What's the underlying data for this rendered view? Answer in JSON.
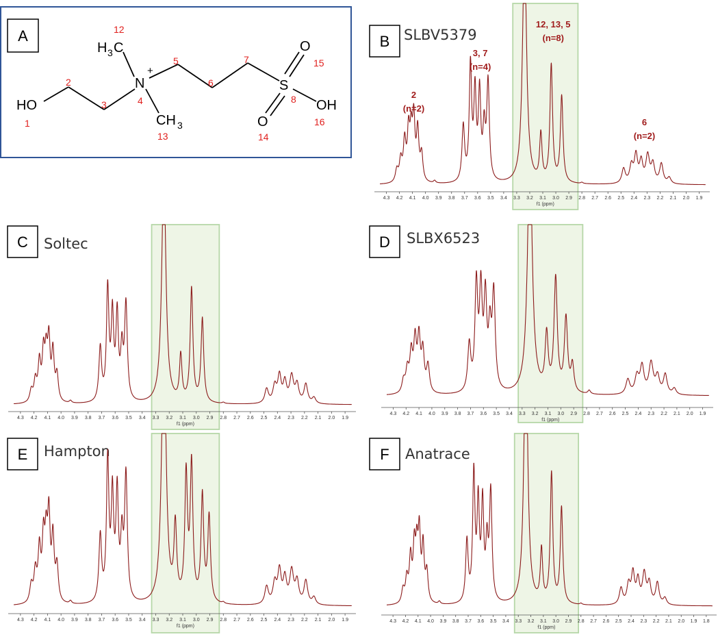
{
  "structure": {
    "label": "A",
    "atoms": {
      "ho": "HO",
      "n": "N",
      "plus": "+",
      "s": "S",
      "o_top": "O",
      "o_bottom": "O",
      "oh": "OH",
      "h3c_h": "H",
      "h3c_3": "3",
      "h3c_c": "C",
      "ch3_c": "CH",
      "ch3_3": "3"
    },
    "numbers": [
      "1",
      "2",
      "3",
      "4",
      "5",
      "6",
      "7",
      "8",
      "12",
      "13",
      "14",
      "15",
      "16"
    ],
    "colors": {
      "bond": "#000000",
      "numbers": "#e0201e",
      "frame": "#2f5597"
    }
  },
  "x_axis_label": "f1 (ppm)",
  "colors": {
    "spectrum": "#8b1a1a",
    "highlight_fill": "#eef5e6",
    "highlight_stroke": "#b6d7a8",
    "annotation": "#a01c1c"
  },
  "chart_data": [
    {
      "panel": "B",
      "title": "SLBV5379",
      "type": "line",
      "x_range": [
        4.35,
        1.85
      ],
      "ticks": [
        "4.3",
        "4.2",
        "4.1",
        "4.0",
        "3.9",
        "3.8",
        "3.7",
        "3.6",
        "3.5",
        "3.4",
        "3.3",
        "3.2",
        "3.1",
        "3.0",
        "2.9",
        "2.8",
        "2.7",
        "2.6",
        "2.5",
        "2.4",
        "2.3",
        "2.2",
        "2.1",
        "2.0",
        "1.9"
      ],
      "highlight_ppm": [
        3.33,
        2.83
      ],
      "annotations": [
        {
          "lines": [
            "2",
            "(n=2)"
          ],
          "ppm": 4.09
        },
        {
          "lines": [
            "3, 7",
            "(n=4)"
          ],
          "ppm": 3.58
        },
        {
          "lines": [
            "12, 13, 5",
            "(n=8)"
          ],
          "ppm": 3.02
        },
        {
          "lines": [
            "6",
            "(n=2)"
          ],
          "ppm": 2.32
        }
      ],
      "peaks": [
        [
          4.22,
          0.1,
          0.013
        ],
        [
          4.19,
          0.17,
          0.012
        ],
        [
          4.16,
          0.32,
          0.012
        ],
        [
          4.13,
          0.38,
          0.011
        ],
        [
          4.11,
          0.35,
          0.011
        ],
        [
          4.09,
          0.48,
          0.011
        ],
        [
          4.06,
          0.4,
          0.011
        ],
        [
          4.03,
          0.22,
          0.012
        ],
        [
          3.93,
          0.02,
          0.01
        ],
        [
          3.71,
          0.45,
          0.012
        ],
        [
          3.655,
          0.93,
          0.011
        ],
        [
          3.62,
          0.7,
          0.011
        ],
        [
          3.585,
          0.7,
          0.011
        ],
        [
          3.55,
          0.4,
          0.011
        ],
        [
          3.52,
          0.8,
          0.012
        ],
        [
          3.24,
          2.0,
          0.018
        ],
        [
          3.115,
          0.38,
          0.011
        ],
        [
          3.035,
          0.95,
          0.012
        ],
        [
          2.955,
          0.7,
          0.012
        ],
        [
          2.8,
          0.01,
          0.01
        ],
        [
          2.48,
          0.12,
          0.016
        ],
        [
          2.42,
          0.14,
          0.016
        ],
        [
          2.385,
          0.22,
          0.015
        ],
        [
          2.345,
          0.17,
          0.015
        ],
        [
          2.295,
          0.22,
          0.017
        ],
        [
          2.255,
          0.15,
          0.016
        ],
        [
          2.19,
          0.16,
          0.016
        ],
        [
          2.13,
          0.05,
          0.016
        ]
      ]
    },
    {
      "panel": "C",
      "title": "Soltec",
      "type": "line",
      "x_range": [
        4.35,
        1.85
      ],
      "ticks": [
        "4.3",
        "4.2",
        "4.1",
        "4.0",
        "3.9",
        "3.8",
        "3.7",
        "3.6",
        "3.5",
        "3.4",
        "3.3",
        "3.2",
        "3.1",
        "3.0",
        "2.9",
        "2.8",
        "2.7",
        "2.6",
        "2.5",
        "2.4",
        "2.3",
        "2.2",
        "2.1",
        "2.0",
        "1.9"
      ],
      "highlight_ppm": [
        3.33,
        2.83
      ],
      "annotations": [],
      "peaks": [
        [
          4.22,
          0.1,
          0.013
        ],
        [
          4.19,
          0.17,
          0.012
        ],
        [
          4.16,
          0.32,
          0.012
        ],
        [
          4.13,
          0.38,
          0.011
        ],
        [
          4.11,
          0.35,
          0.011
        ],
        [
          4.09,
          0.48,
          0.011
        ],
        [
          4.06,
          0.4,
          0.011
        ],
        [
          4.03,
          0.22,
          0.012
        ],
        [
          3.93,
          0.02,
          0.01
        ],
        [
          3.71,
          0.45,
          0.012
        ],
        [
          3.655,
          0.93,
          0.011
        ],
        [
          3.62,
          0.7,
          0.011
        ],
        [
          3.585,
          0.7,
          0.011
        ],
        [
          3.55,
          0.4,
          0.011
        ],
        [
          3.52,
          0.8,
          0.012
        ],
        [
          3.24,
          2.0,
          0.018
        ],
        [
          3.115,
          0.38,
          0.011
        ],
        [
          3.035,
          0.95,
          0.012
        ],
        [
          2.955,
          0.7,
          0.012
        ],
        [
          2.8,
          0.01,
          0.01
        ],
        [
          2.48,
          0.12,
          0.016
        ],
        [
          2.42,
          0.14,
          0.016
        ],
        [
          2.385,
          0.22,
          0.015
        ],
        [
          2.345,
          0.17,
          0.015
        ],
        [
          2.295,
          0.22,
          0.017
        ],
        [
          2.255,
          0.15,
          0.016
        ],
        [
          2.19,
          0.16,
          0.016
        ],
        [
          2.13,
          0.05,
          0.016
        ]
      ]
    },
    {
      "panel": "D",
      "title": "SLBX6523",
      "type": "line",
      "x_range": [
        4.35,
        1.85
      ],
      "ticks": [
        "4.3",
        "4.2",
        "4.1",
        "4.0",
        "3.9",
        "3.8",
        "3.7",
        "3.6",
        "3.5",
        "3.4",
        "3.3",
        "3.2",
        "3.1",
        "3.0",
        "2.9",
        "2.8",
        "2.7",
        "2.6",
        "2.5",
        "2.4",
        "2.3",
        "2.2",
        "2.1",
        "2.0",
        "1.9"
      ],
      "highlight_ppm": [
        3.33,
        2.83
      ],
      "annotations": [],
      "peaks": [
        [
          4.22,
          0.1,
          0.014
        ],
        [
          4.19,
          0.18,
          0.014
        ],
        [
          4.16,
          0.3,
          0.013
        ],
        [
          4.13,
          0.4,
          0.013
        ],
        [
          4.1,
          0.42,
          0.013
        ],
        [
          4.07,
          0.32,
          0.013
        ],
        [
          4.03,
          0.22,
          0.014
        ],
        [
          3.71,
          0.38,
          0.014
        ],
        [
          3.655,
          0.85,
          0.013
        ],
        [
          3.62,
          0.78,
          0.013
        ],
        [
          3.585,
          0.72,
          0.013
        ],
        [
          3.55,
          0.45,
          0.013
        ],
        [
          3.52,
          0.78,
          0.014
        ],
        [
          3.24,
          2.0,
          0.022
        ],
        [
          3.11,
          0.45,
          0.014
        ],
        [
          3.04,
          0.92,
          0.015
        ],
        [
          2.96,
          0.6,
          0.015
        ],
        [
          2.91,
          0.22,
          0.014
        ],
        [
          2.78,
          0.03,
          0.012
        ],
        [
          2.48,
          0.12,
          0.018
        ],
        [
          2.41,
          0.14,
          0.018
        ],
        [
          2.37,
          0.22,
          0.018
        ],
        [
          2.3,
          0.25,
          0.02
        ],
        [
          2.25,
          0.14,
          0.018
        ],
        [
          2.19,
          0.16,
          0.017
        ],
        [
          2.12,
          0.05,
          0.017
        ]
      ]
    },
    {
      "panel": "E",
      "title": "Hampton",
      "type": "line",
      "x_range": [
        4.35,
        1.85
      ],
      "ticks": [
        "4.3",
        "4.2",
        "4.1",
        "4.0",
        "3.9",
        "3.8",
        "3.7",
        "3.6",
        "3.5",
        "3.4",
        "3.3",
        "3.2",
        "3.1",
        "3.0",
        "2.9",
        "2.8",
        "2.7",
        "2.6",
        "2.5",
        "2.4",
        "2.3",
        "2.2",
        "2.1",
        "2.0",
        "1.9"
      ],
      "highlight_ppm": [
        3.33,
        2.83
      ],
      "annotations": [],
      "peaks": [
        [
          4.22,
          0.12,
          0.013
        ],
        [
          4.19,
          0.2,
          0.012
        ],
        [
          4.16,
          0.35,
          0.012
        ],
        [
          4.13,
          0.4,
          0.011
        ],
        [
          4.11,
          0.38,
          0.011
        ],
        [
          4.09,
          0.55,
          0.011
        ],
        [
          4.06,
          0.42,
          0.011
        ],
        [
          4.03,
          0.24,
          0.012
        ],
        [
          3.93,
          0.02,
          0.01
        ],
        [
          3.71,
          0.45,
          0.012
        ],
        [
          3.655,
          0.95,
          0.011
        ],
        [
          3.62,
          0.7,
          0.011
        ],
        [
          3.585,
          0.72,
          0.011
        ],
        [
          3.55,
          0.4,
          0.011
        ],
        [
          3.52,
          0.85,
          0.012
        ],
        [
          3.24,
          2.0,
          0.018
        ],
        [
          3.155,
          0.5,
          0.012
        ],
        [
          3.075,
          0.85,
          0.012
        ],
        [
          3.035,
          0.92,
          0.012
        ],
        [
          2.955,
          0.72,
          0.012
        ],
        [
          2.905,
          0.58,
          0.012
        ],
        [
          2.8,
          0.01,
          0.01
        ],
        [
          2.48,
          0.12,
          0.016
        ],
        [
          2.42,
          0.14,
          0.016
        ],
        [
          2.385,
          0.22,
          0.015
        ],
        [
          2.345,
          0.17,
          0.015
        ],
        [
          2.295,
          0.22,
          0.017
        ],
        [
          2.255,
          0.15,
          0.016
        ],
        [
          2.19,
          0.16,
          0.016
        ],
        [
          2.13,
          0.05,
          0.016
        ]
      ]
    },
    {
      "panel": "F",
      "title": "Anatrace",
      "type": "line",
      "x_range": [
        4.35,
        1.75
      ],
      "ticks": [
        "4.3",
        "4.2",
        "4.1",
        "4.0",
        "3.9",
        "3.8",
        "3.7",
        "3.6",
        "3.5",
        "3.4",
        "3.3",
        "3.2",
        "3.1",
        "3.0",
        "2.9",
        "2.8",
        "2.7",
        "2.6",
        "2.5",
        "2.4",
        "2.3",
        "2.2",
        "2.1",
        "2.0",
        "1.9",
        "1.8"
      ],
      "highlight_ppm": [
        3.33,
        2.82
      ],
      "annotations": [],
      "peaks": [
        [
          4.22,
          0.1,
          0.013
        ],
        [
          4.19,
          0.17,
          0.012
        ],
        [
          4.16,
          0.32,
          0.012
        ],
        [
          4.13,
          0.38,
          0.011
        ],
        [
          4.11,
          0.35,
          0.011
        ],
        [
          4.09,
          0.48,
          0.011
        ],
        [
          4.06,
          0.4,
          0.011
        ],
        [
          4.03,
          0.22,
          0.012
        ],
        [
          3.93,
          0.02,
          0.01
        ],
        [
          3.71,
          0.45,
          0.012
        ],
        [
          3.655,
          0.93,
          0.011
        ],
        [
          3.62,
          0.7,
          0.011
        ],
        [
          3.585,
          0.7,
          0.011
        ],
        [
          3.55,
          0.4,
          0.011
        ],
        [
          3.52,
          0.8,
          0.012
        ],
        [
          3.24,
          2.0,
          0.018
        ],
        [
          3.115,
          0.38,
          0.011
        ],
        [
          3.035,
          0.95,
          0.012
        ],
        [
          2.955,
          0.7,
          0.012
        ],
        [
          2.8,
          0.01,
          0.01
        ],
        [
          2.48,
          0.12,
          0.016
        ],
        [
          2.42,
          0.14,
          0.016
        ],
        [
          2.385,
          0.22,
          0.015
        ],
        [
          2.345,
          0.17,
          0.015
        ],
        [
          2.295,
          0.22,
          0.017
        ],
        [
          2.255,
          0.15,
          0.016
        ],
        [
          2.19,
          0.16,
          0.016
        ],
        [
          2.13,
          0.05,
          0.016
        ]
      ]
    }
  ]
}
